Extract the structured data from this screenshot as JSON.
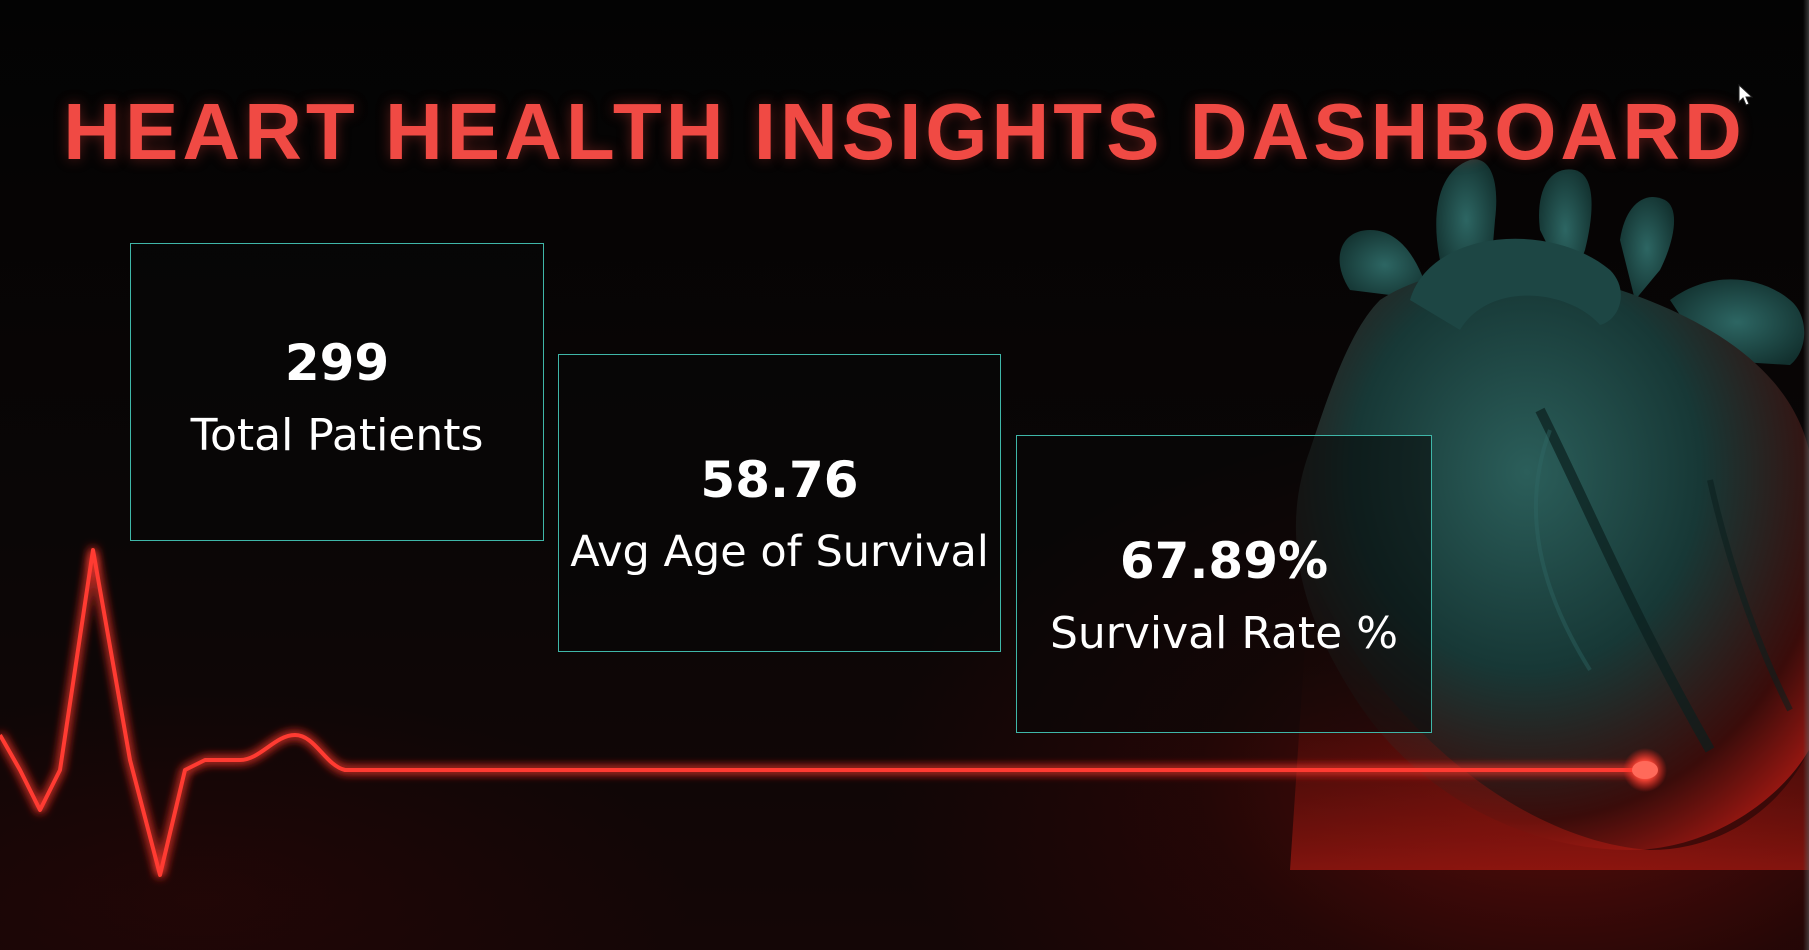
{
  "dashboard": {
    "title": "HEART HEALTH INSIGHTS DASHBOARD",
    "colors": {
      "title": "#f04a44",
      "card_border": "#3fb6a8",
      "ecg_line": "#ff3b30",
      "heart": "#1f4a48"
    }
  },
  "cards": {
    "patients": {
      "value": "299",
      "label": "Total Patients"
    },
    "age": {
      "value": "58.76",
      "label": "Avg Age of Survival"
    },
    "rate": {
      "value": "67.89%",
      "label": "Survival Rate %"
    }
  },
  "icons": {
    "background": "heart-illustration-icon",
    "line": "ecg-line-icon",
    "pointer": "mouse-cursor-icon"
  }
}
